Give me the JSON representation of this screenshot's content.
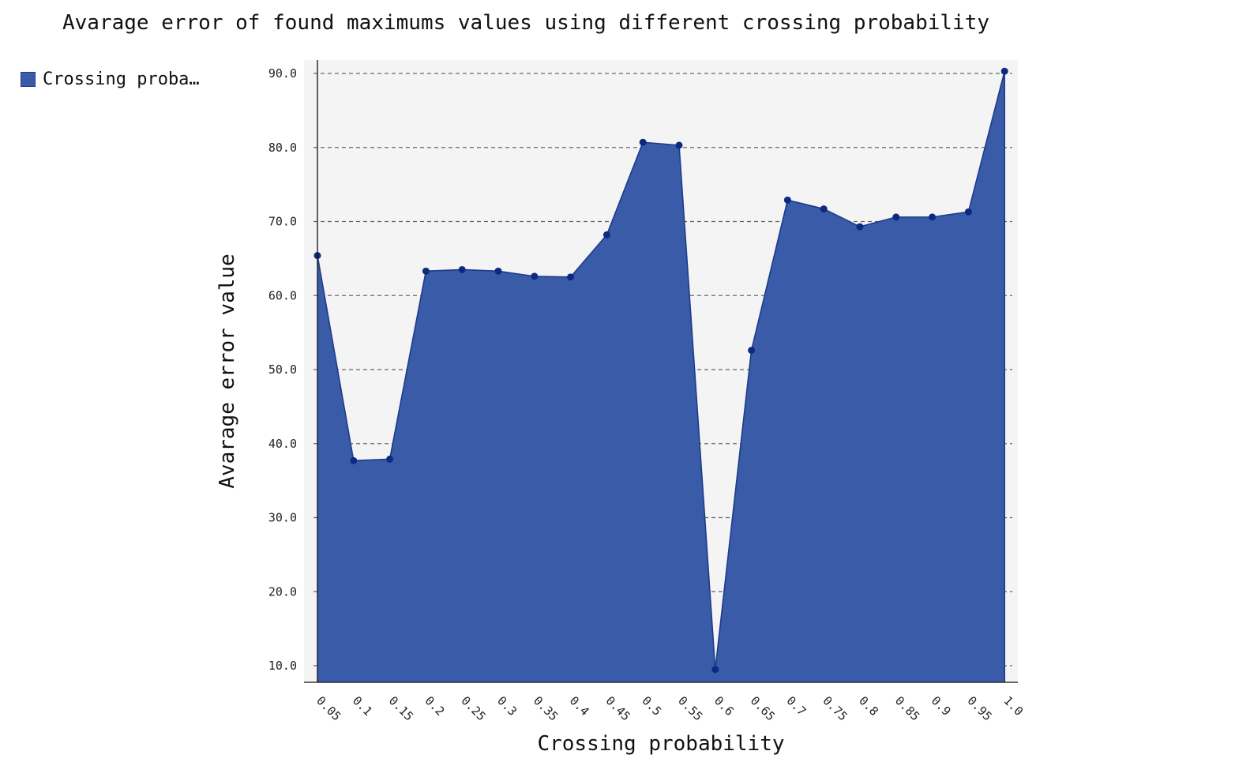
{
  "chart_data": {
    "type": "area",
    "title": "Avarage error of found maximums values using different crossing probability",
    "xlabel": "Crossing probability",
    "ylabel": "Avarage error value",
    "legend": {
      "placement": "left",
      "entries": [
        "Crossing proba…"
      ]
    },
    "grid": true,
    "x": [
      "0.05",
      "0.1",
      "0.15",
      "0.2",
      "0.25",
      "0.3",
      "0.35",
      "0.4",
      "0.45",
      "0.5",
      "0.55",
      "0.6",
      "0.65",
      "0.7",
      "0.75",
      "0.8",
      "0.85",
      "0.9",
      "0.95",
      "1.0"
    ],
    "series": [
      {
        "name": "Crossing proba…",
        "values": [
          65.4,
          37.7,
          37.9,
          63.3,
          63.5,
          63.3,
          62.6,
          62.5,
          68.2,
          80.7,
          80.3,
          9.5,
          52.6,
          72.9,
          71.7,
          69.3,
          70.6,
          70.6,
          71.3,
          90.3
        ]
      }
    ],
    "yticks": [
      "10.0",
      "20.0",
      "30.0",
      "40.0",
      "50.0",
      "60.0",
      "70.0",
      "80.0",
      "90.0"
    ],
    "ylim": [
      7.8,
      91.9
    ],
    "colors": {
      "fill": "#3a5ca8",
      "stroke": "#1e3a8a",
      "marker": "#0d2a80",
      "plot_background": "#f4f4f4",
      "grid": "#666666"
    }
  }
}
